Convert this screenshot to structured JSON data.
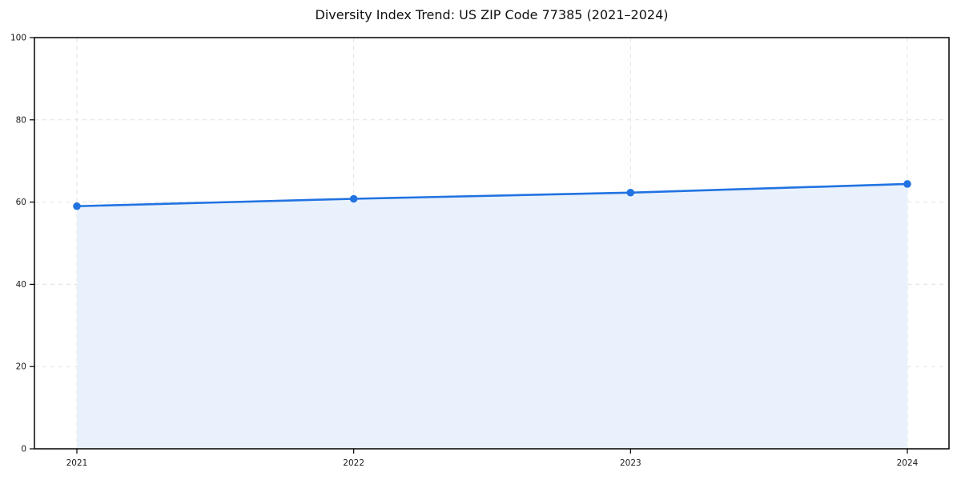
{
  "chart_data": {
    "type": "line",
    "title": "Diversity Index Trend: US ZIP Code 77385 (2021–2024)",
    "categories": [
      "2021",
      "2022",
      "2023",
      "2024"
    ],
    "series": [
      {
        "name": "Diversity Index",
        "values": [
          59.0,
          60.8,
          62.3,
          64.4
        ]
      }
    ],
    "xlabel": "",
    "ylabel": "",
    "ylim": [
      0,
      100
    ],
    "yticks": [
      0,
      20,
      40,
      60,
      80,
      100
    ],
    "grid": true,
    "grid_style": "dashed",
    "legend": "none",
    "area_fill": true,
    "markers": true,
    "colors": {
      "line": "#2173e2",
      "marker": "#2173e2",
      "area_fill": "#e9f1fc",
      "grid": "#e1e1e1",
      "axis": "#000000",
      "text": "#1a1a1a",
      "background": "#ffffff"
    }
  }
}
